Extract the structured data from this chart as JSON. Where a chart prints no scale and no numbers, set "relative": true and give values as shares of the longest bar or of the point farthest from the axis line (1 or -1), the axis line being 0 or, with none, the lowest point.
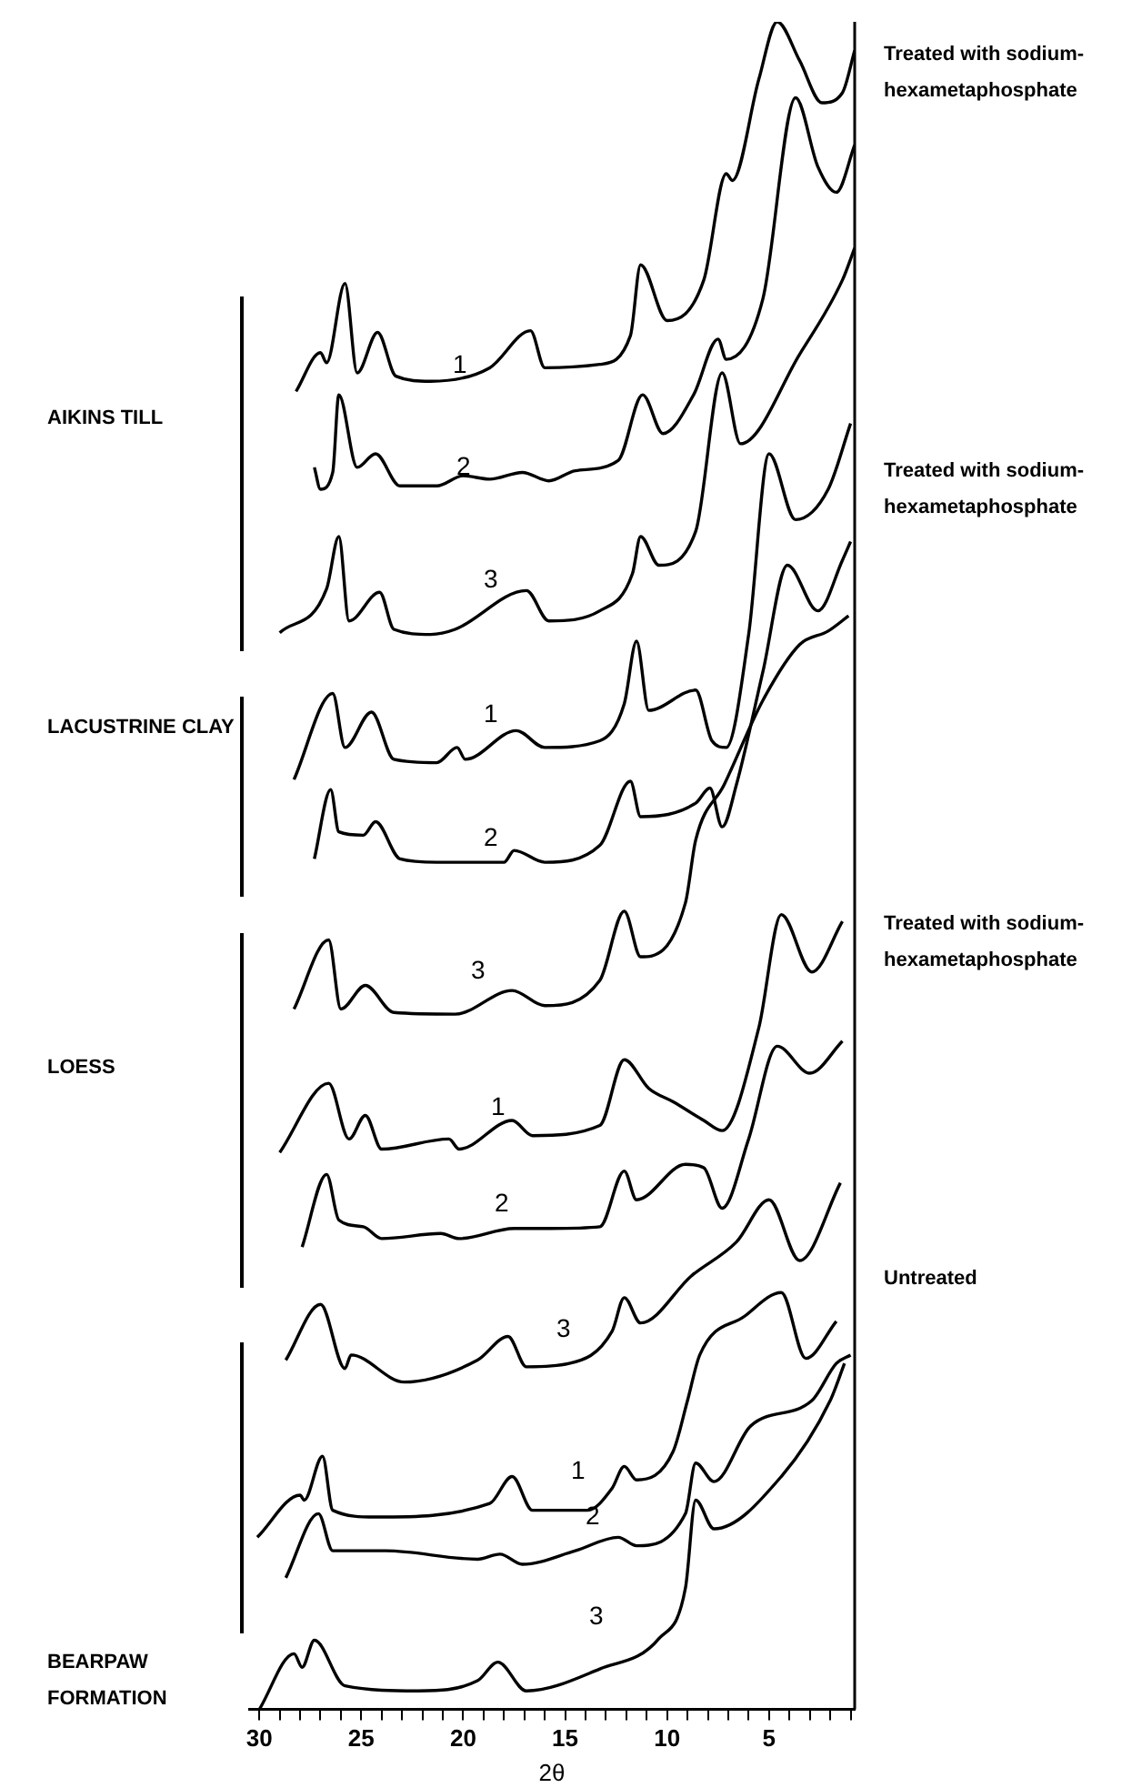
{
  "chart_data": {
    "type": "line",
    "relative": true,
    "xlabel": "2θ",
    "xlim": [
      30.5,
      0.8
    ],
    "tick_labels": "x",
    "marker": "none",
    "line_style": "solid",
    "xticks": [
      30,
      {
        "value": 29,
        "label": null
      },
      {
        "value": 28,
        "label": null
      },
      {
        "value": 27,
        "label": null
      },
      {
        "value": 26,
        "label": null
      },
      25,
      {
        "value": 24,
        "label": null
      },
      {
        "value": 23,
        "label": null
      },
      {
        "value": 22,
        "label": null
      },
      {
        "value": 21,
        "label": null
      },
      20,
      {
        "value": 19,
        "label": null
      },
      {
        "value": 18,
        "label": null
      },
      {
        "value": 17,
        "label": null
      },
      {
        "value": 16,
        "label": null
      },
      15,
      {
        "value": 14,
        "label": null
      },
      {
        "value": 13,
        "label": null
      },
      {
        "value": 12,
        "label": null
      },
      {
        "value": 11,
        "label": null
      },
      10,
      {
        "value": 9,
        "label": null
      },
      {
        "value": 8,
        "label": null
      },
      {
        "value": 7,
        "label": null
      },
      {
        "value": 6,
        "label": null
      },
      5,
      {
        "value": 4,
        "label": null
      },
      {
        "value": 3,
        "label": null
      },
      {
        "value": 2,
        "label": null
      },
      {
        "value": 1,
        "label": null
      }
    ],
    "annotations": [
      "AIKINS TILL",
      "LACUSTRINE CLAY",
      "LOESS",
      "BEARPAW FORMATION",
      "Treated with sodium-hexametaphosphate",
      "Treated with sodium-hexametaphosphate",
      "Treated with sodium-hexametaphosphate",
      "Untreated",
      "1",
      "2",
      "3",
      "1",
      "2",
      "3",
      "1",
      "2",
      "3",
      "1",
      "2",
      "3"
    ],
    "series": [
      {
        "color": "#000000",
        "x": [
          28.2,
          27.0,
          26.7,
          25.8,
          25.2,
          24.2,
          23.3,
          21.6,
          18.7,
          16.7,
          16.0,
          13.3,
          11.8,
          11.3,
          10.0,
          8.2,
          7.1,
          6.8,
          5.5,
          4.6,
          3.5,
          2.4,
          1.4,
          0.8
        ],
        "values": [
          0.781,
          0.804,
          0.798,
          0.845,
          0.792,
          0.816,
          0.79,
          0.787,
          0.795,
          0.817,
          0.795,
          0.797,
          0.814,
          0.856,
          0.823,
          0.847,
          0.91,
          0.906,
          0.966,
          1,
          0.977,
          0.952,
          0.958,
          0.983
        ]
      },
      {
        "color": "#000000",
        "x": [
          27.3,
          27.0,
          26.4,
          26.1,
          25.2,
          24.3,
          23.1,
          21.3,
          20.0,
          18.7,
          17.1,
          15.8,
          14.5,
          12.4,
          11.2,
          10.2,
          8.7,
          7.5,
          7.1,
          5.3,
          3.7,
          2.6,
          1.7,
          0.8
        ],
        "values": [
          0.736,
          0.723,
          0.733,
          0.779,
          0.736,
          0.744,
          0.725,
          0.725,
          0.731,
          0.729,
          0.733,
          0.728,
          0.734,
          0.74,
          0.779,
          0.756,
          0.779,
          0.812,
          0.8,
          0.836,
          0.955,
          0.914,
          0.899,
          0.927
        ]
      },
      {
        "color": "#000000",
        "x": [
          29.0,
          26.7,
          26.1,
          25.6,
          24.1,
          23.4,
          21.6,
          20.4,
          16.9,
          15.8,
          13.3,
          11.7,
          11.3,
          10.4,
          8.6,
          7.3,
          6.4,
          3.5,
          1.4,
          0.8
        ],
        "values": [
          0.638,
          0.664,
          0.695,
          0.645,
          0.662,
          0.64,
          0.637,
          0.64,
          0.663,
          0.645,
          0.651,
          0.673,
          0.695,
          0.678,
          0.698,
          0.792,
          0.75,
          0.803,
          0.847,
          0.866
        ]
      },
      {
        "color": "#000000",
        "x": [
          28.3,
          26.4,
          25.8,
          24.5,
          23.4,
          21.3,
          20.3,
          19.9,
          17.4,
          16.0,
          13.3,
          12.1,
          11.5,
          10.9,
          8.6,
          7.8,
          7.1,
          6.0,
          5.0,
          3.7,
          2.1,
          1.0
        ],
        "values": [
          0.551,
          0.602,
          0.57,
          0.591,
          0.563,
          0.561,
          0.57,
          0.563,
          0.58,
          0.57,
          0.574,
          0.596,
          0.633,
          0.592,
          0.604,
          0.574,
          0.57,
          0.637,
          0.744,
          0.705,
          0.723,
          0.762
        ]
      },
      {
        "color": "#000000",
        "x": [
          27.3,
          26.5,
          26.1,
          24.9,
          24.3,
          23.1,
          21.3,
          18.0,
          17.5,
          16.0,
          13.3,
          11.8,
          11.3,
          8.6,
          7.9,
          7.3,
          6.6,
          5.3,
          4.1,
          2.6,
          1.4,
          1.0
        ],
        "values": [
          0.504,
          0.545,
          0.52,
          0.518,
          0.526,
          0.504,
          0.502,
          0.502,
          0.509,
          0.502,
          0.512,
          0.55,
          0.529,
          0.537,
          0.546,
          0.523,
          0.548,
          0.615,
          0.678,
          0.651,
          0.681,
          0.692
        ]
      },
      {
        "color": "#000000",
        "x": [
          28.3,
          26.6,
          26.0,
          24.8,
          23.4,
          20.4,
          17.6,
          16.0,
          13.3,
          12.1,
          11.3,
          9.1,
          8.6,
          7.2,
          5.3,
          3.5,
          2.1,
          1.1
        ],
        "values": [
          0.415,
          0.456,
          0.415,
          0.429,
          0.413,
          0.412,
          0.426,
          0.417,
          0.432,
          0.473,
          0.446,
          0.478,
          0.515,
          0.548,
          0.598,
          0.631,
          0.639,
          0.648
        ]
      },
      {
        "color": "#000000",
        "x": [
          29.0,
          26.6,
          25.6,
          24.8,
          24.0,
          20.7,
          20.2,
          17.6,
          16.6,
          13.3,
          12.1,
          10.9,
          9.7,
          8.2,
          7.3,
          5.5,
          4.4,
          2.9,
          1.4
        ],
        "values": [
          0.33,
          0.371,
          0.338,
          0.352,
          0.332,
          0.338,
          0.332,
          0.349,
          0.34,
          0.346,
          0.385,
          0.368,
          0.36,
          0.349,
          0.343,
          0.404,
          0.471,
          0.437,
          0.467
        ]
      },
      {
        "color": "#000000",
        "x": [
          27.9,
          26.7,
          26.1,
          24.9,
          24.0,
          21.1,
          20.2,
          17.5,
          15.7,
          13.3,
          12.1,
          11.5,
          9.1,
          8.2,
          7.3,
          6.0,
          4.6,
          3.0,
          1.4
        ],
        "values": [
          0.274,
          0.317,
          0.29,
          0.286,
          0.279,
          0.282,
          0.279,
          0.285,
          0.285,
          0.286,
          0.319,
          0.302,
          0.323,
          0.321,
          0.297,
          0.338,
          0.393,
          0.377,
          0.396
        ]
      },
      {
        "color": "#000000",
        "x": [
          28.7,
          27.0,
          25.8,
          25.5,
          22.9,
          19.3,
          17.8,
          16.9,
          14.8,
          12.7,
          12.1,
          11.3,
          8.8,
          6.6,
          5.0,
          3.5,
          1.5
        ],
        "values": [
          0.207,
          0.24,
          0.202,
          0.21,
          0.194,
          0.207,
          0.221,
          0.203,
          0.205,
          0.224,
          0.244,
          0.229,
          0.257,
          0.277,
          0.302,
          0.266,
          0.312
        ]
      },
      {
        "color": "#000000",
        "x": [
          30.1,
          28.0,
          27.8,
          26.9,
          26.4,
          24.3,
          18.7,
          17.6,
          16.6,
          13.9,
          12.7,
          12.1,
          11.5,
          9.7,
          9.0,
          8.4,
          6.2,
          4.4,
          3.2,
          1.7
        ],
        "values": [
          0.102,
          0.127,
          0.124,
          0.15,
          0.118,
          0.114,
          0.122,
          0.138,
          0.118,
          0.118,
          0.131,
          0.144,
          0.136,
          0.153,
          0.183,
          0.21,
          0.233,
          0.247,
          0.208,
          0.23
        ]
      },
      {
        "color": "#000000",
        "x": [
          28.7,
          27.1,
          26.4,
          23.8,
          19.3,
          18.2,
          17.1,
          14.5,
          12.4,
          11.5,
          9.1,
          8.6,
          7.7,
          5.9,
          2.9,
          1.7,
          1.0
        ],
        "values": [
          0.078,
          0.116,
          0.094,
          0.094,
          0.089,
          0.092,
          0.086,
          0.094,
          0.102,
          0.097,
          0.116,
          0.146,
          0.135,
          0.168,
          0.183,
          0.205,
          0.21
        ]
      },
      {
        "color": "#000000",
        "x": [
          30.0,
          28.3,
          27.9,
          27.3,
          25.8,
          22.2,
          19.3,
          18.3,
          16.9,
          13.3,
          10.4,
          9.1,
          8.6,
          7.7,
          4.4,
          2.0,
          1.3
        ],
        "values": [
          0,
          0.033,
          0.025,
          0.041,
          0.014,
          0.011,
          0.017,
          0.028,
          0.011,
          0.024,
          0.042,
          0.072,
          0.124,
          0.107,
          0.138,
          0.183,
          0.205
        ]
      }
    ]
  }
}
